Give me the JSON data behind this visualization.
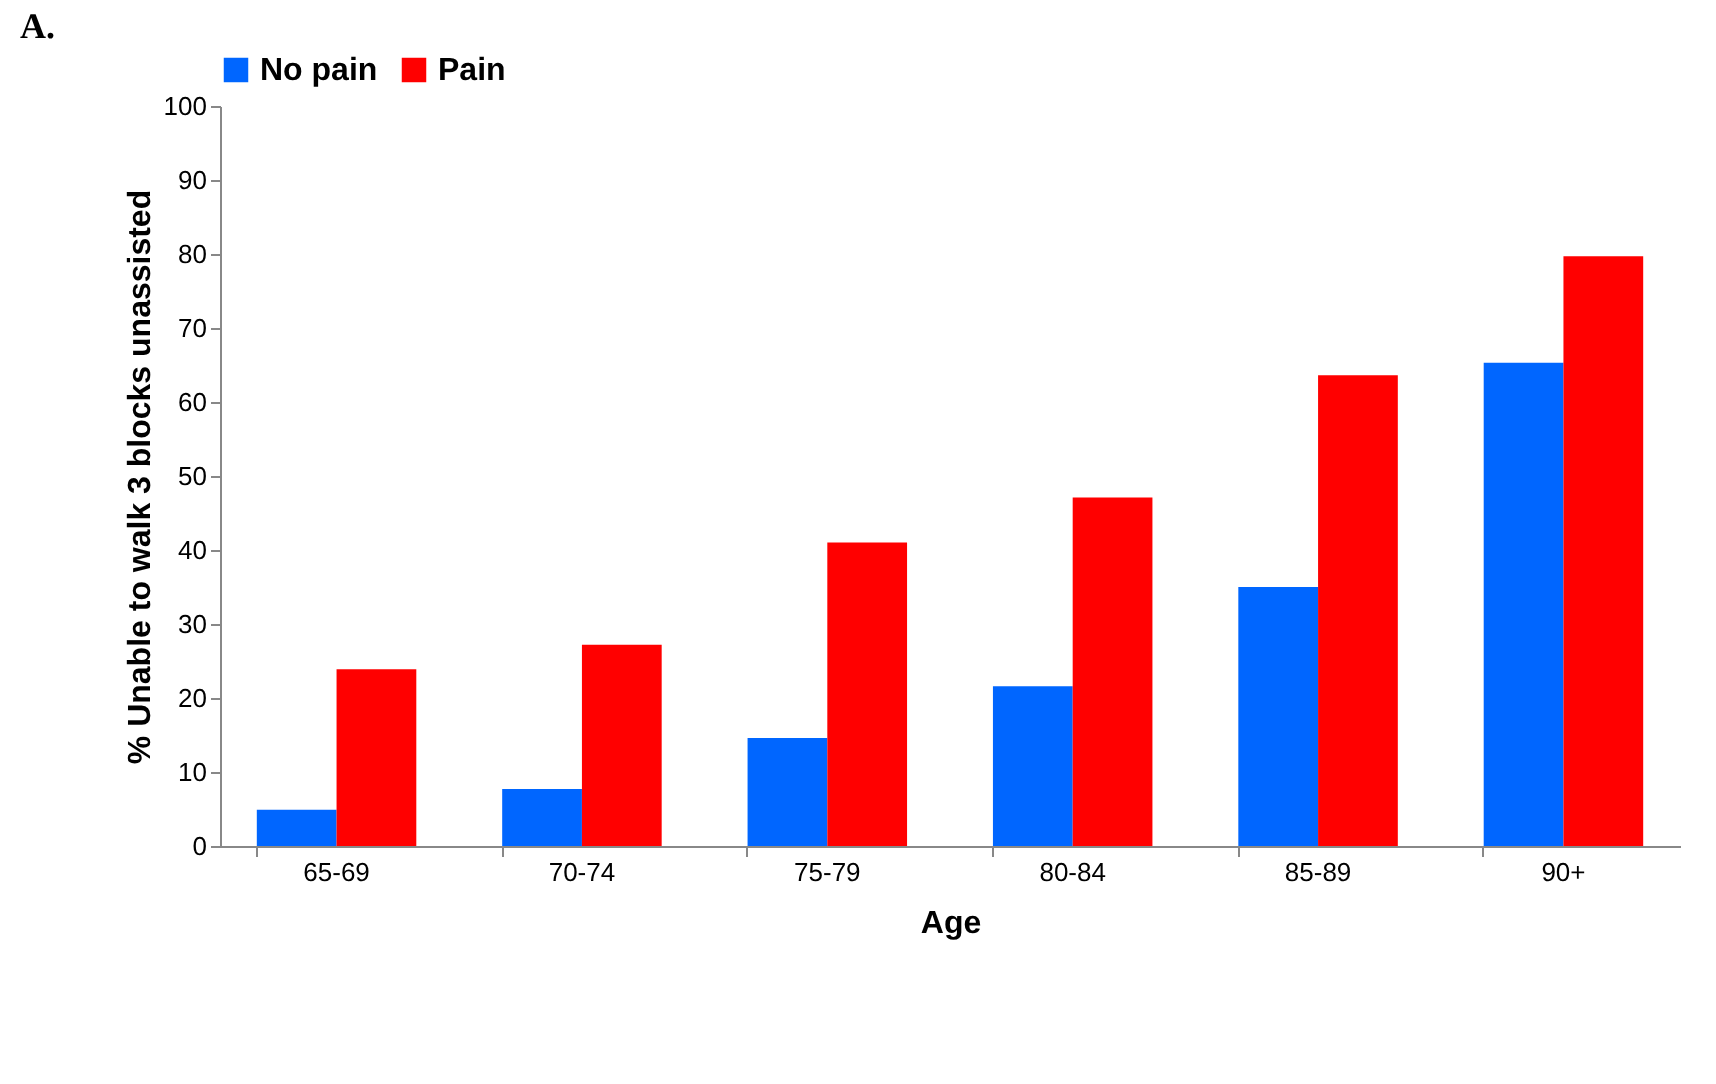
{
  "chart_data": {
    "type": "bar",
    "title": "A.",
    "xlabel": "Age",
    "ylabel": "% Unable to walk 3 blocks unassisted",
    "categories": [
      "65-69",
      "70-74",
      "75-79",
      "80-84",
      "85-89",
      "90+"
    ],
    "series": [
      {
        "name": "No pain",
        "color": "#0066ff",
        "values": [
          4.9,
          7.7,
          14.6,
          21.6,
          35.0,
          65.3
        ]
      },
      {
        "name": "Pain",
        "color": "#ff0000",
        "values": [
          23.9,
          27.2,
          41.0,
          47.1,
          63.6,
          79.7
        ]
      }
    ],
    "ylim": [
      0,
      100
    ],
    "yticks": [
      0,
      10,
      20,
      30,
      40,
      50,
      60,
      70,
      80,
      90,
      100
    ],
    "grid": false,
    "legend": "top"
  }
}
